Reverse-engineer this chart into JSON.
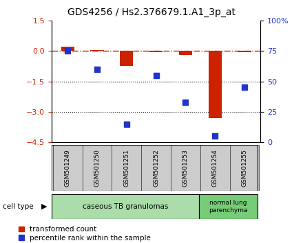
{
  "title": "GDS4256 / Hs2.376679.1.A1_3p_at",
  "samples": [
    "GSM501249",
    "GSM501250",
    "GSM501251",
    "GSM501252",
    "GSM501253",
    "GSM501254",
    "GSM501255"
  ],
  "red_bars": [
    0.22,
    0.05,
    -0.72,
    -0.05,
    -0.18,
    -3.3,
    -0.04
  ],
  "blue_vals": [
    75,
    60,
    15,
    55,
    33,
    5,
    45
  ],
  "ylim_left": [
    -4.5,
    1.5
  ],
  "ylim_right": [
    0,
    100
  ],
  "left_ticks": [
    1.5,
    0,
    -1.5,
    -3,
    -4.5
  ],
  "right_ticks": [
    100,
    75,
    50,
    25,
    0
  ],
  "right_tick_labels": [
    "100%",
    "75",
    "50",
    "25",
    "0"
  ],
  "dotted_lines": [
    -1.5,
    -3
  ],
  "group1_count": 5,
  "group2_count": 2,
  "group1_label": "caseous TB granulomas",
  "group2_label": "normal lung\nparenchyma",
  "cell_type_label": "cell type",
  "legend1_label": "transformed count",
  "legend2_label": "percentile rank within the sample",
  "red_color": "#cc2200",
  "blue_color": "#2233cc",
  "bar_width": 0.45,
  "blue_marker_size": 6,
  "group1_bg": "#aaddaa",
  "group2_bg": "#77cc77",
  "sample_box_bg": "#cccccc",
  "title_fontsize": 10,
  "tick_fontsize": 8,
  "label_fontsize": 8
}
